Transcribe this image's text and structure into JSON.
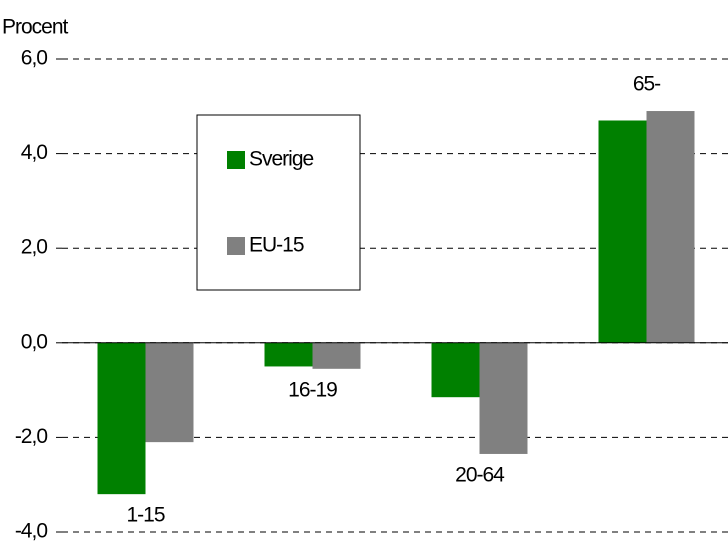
{
  "chart_data": {
    "type": "bar",
    "y_label": "Procent",
    "categories": [
      "1-15",
      "16-19",
      "20-64",
      "65-"
    ],
    "series": [
      {
        "name": "Sverige",
        "color": "#008000",
        "values": [
          -3.2,
          -0.5,
          -1.15,
          4.7
        ]
      },
      {
        "name": "EU-15",
        "color": "#808080",
        "values": [
          -2.1,
          -0.55,
          -2.35,
          4.9
        ]
      }
    ],
    "ylim": [
      -4,
      6
    ],
    "yticks": [
      {
        "value": -4,
        "label": "-4,0"
      },
      {
        "value": -2,
        "label": "-2,0"
      },
      {
        "value": 0,
        "label": "0,0"
      },
      {
        "value": 2,
        "label": "2,0"
      },
      {
        "value": 4,
        "label": "4,0"
      },
      {
        "value": 6,
        "label": "6,0"
      }
    ],
    "grid": true
  }
}
